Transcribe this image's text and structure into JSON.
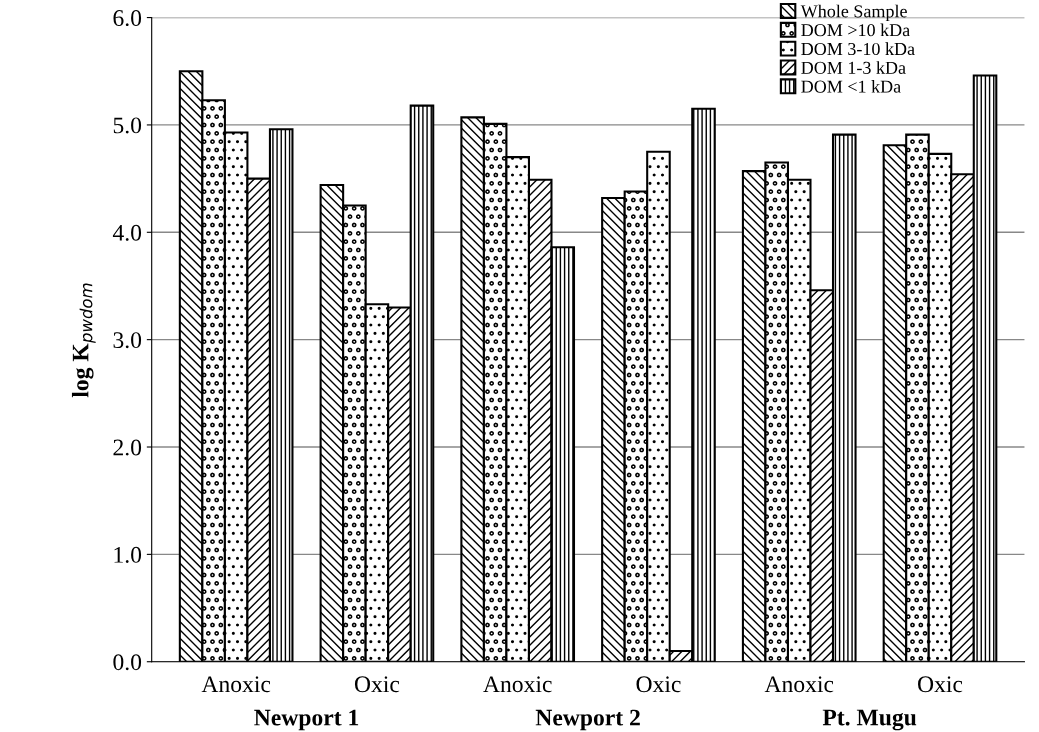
{
  "chart_data": {
    "type": "bar",
    "ylabel": "log K$_{pwdom}$",
    "categories": [
      "Anoxic",
      "Oxic",
      "Anoxic",
      "Oxic",
      "Anoxic",
      "Oxic"
    ],
    "series": [
      {
        "name": "Whole Sample",
        "color": "#000000",
        "values": [
          5.5,
          4.44,
          5.07,
          4.32,
          4.57,
          4.81
        ]
      },
      {
        "name": "DOM >10 kDa",
        "color": "#000000",
        "values": [
          5.23,
          4.25,
          5.01,
          4.38,
          4.65,
          4.91
        ]
      },
      {
        "name": "DOM 3-10 kDa",
        "color": "#000000",
        "values": [
          4.93,
          3.33,
          4.7,
          4.75,
          4.49,
          4.73
        ]
      },
      {
        "name": "DOM 1-3 kDa",
        "color": "#000000",
        "values": [
          4.5,
          3.3,
          4.49,
          0.1,
          3.46,
          4.54
        ]
      },
      {
        "name": "DOM <1 kDa",
        "color": "#000000",
        "values": [
          4.96,
          5.18,
          3.86,
          5.15,
          4.91,
          5.46
        ]
      }
    ],
    "annotations": [
      "Newport 1",
      "Newport 2",
      "Pt. Mugu"
    ],
    "ylim": [
      0,
      6
    ],
    "yticks": [
      {
        "value": 0,
        "label": "0.0"
      },
      {
        "value": 1,
        "label": "1.0"
      },
      {
        "value": 2,
        "label": "2.0"
      },
      {
        "value": 3,
        "label": "3.0"
      },
      {
        "value": 4,
        "label": "4.0"
      },
      {
        "value": 5,
        "label": "5.0"
      },
      {
        "value": 6,
        "label": "6.0"
      }
    ],
    "grid": "y",
    "legend": "top right"
  }
}
